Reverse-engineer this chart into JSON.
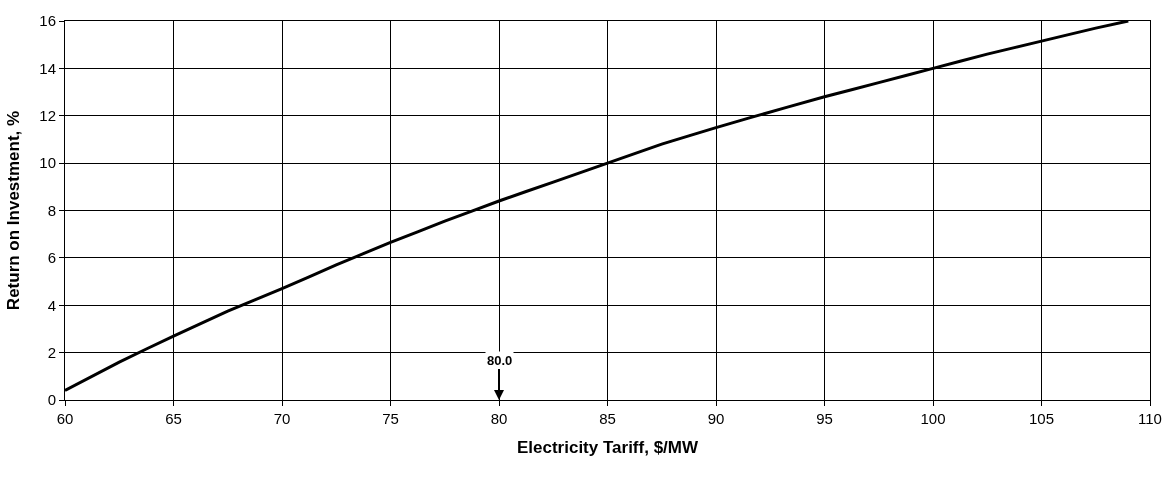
{
  "chart_data": {
    "type": "line",
    "xlabel": "Electricity Tariff, $/MW",
    "ylabel": "Return on Investment, %",
    "x": [
      60,
      62.5,
      65,
      67.5,
      70,
      72.5,
      75,
      77.5,
      80,
      82.5,
      85,
      87.5,
      90,
      91.5,
      95,
      97.5,
      100,
      102.5,
      105,
      107.5,
      109
    ],
    "series": [
      {
        "color": "#000000",
        "values": [
          0.4,
          1.6,
          2.7,
          3.75,
          4.7,
          5.7,
          6.65,
          7.55,
          8.4,
          9.2,
          10.0,
          10.8,
          11.5,
          11.9,
          12.8,
          13.4,
          14.0,
          14.6,
          15.15,
          15.7,
          16.0
        ]
      }
    ],
    "xlim": [
      60,
      110
    ],
    "xticks": [
      60,
      65,
      70,
      75,
      80,
      85,
      90,
      95,
      100,
      105,
      110
    ],
    "ylim": [
      0,
      16
    ],
    "yticks": [
      0,
      2,
      4,
      6,
      8,
      10,
      12,
      14,
      16
    ],
    "annotations": [
      "80.0"
    ],
    "grid": true,
    "marker": "none",
    "line_style": "solid"
  }
}
